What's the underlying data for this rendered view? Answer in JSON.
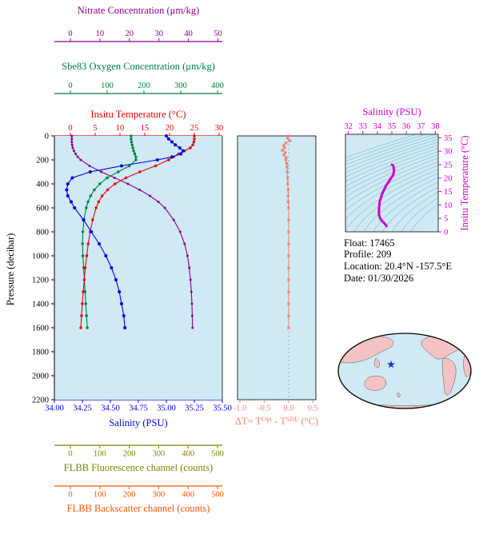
{
  "figure": {
    "bg": "#ffffff",
    "plot_bg": "#cfe9f5"
  },
  "main_plot": {
    "pressure_axis": {
      "label": "Pressure (decibar)",
      "ticks": [
        0,
        200,
        400,
        600,
        800,
        1000,
        1200,
        1400,
        1600,
        1800,
        2000,
        2200
      ],
      "range": [
        0,
        2200
      ]
    },
    "top_axes": [
      {
        "id": "nitrate",
        "title": "Nitrate Concentration (μm/kg)",
        "color": "#8b008b",
        "ticks": [
          "0",
          "10",
          "20",
          "30",
          "40",
          "50"
        ],
        "tick_values": [
          0,
          10,
          20,
          30,
          40,
          50
        ]
      },
      {
        "id": "oxygen",
        "title": "Sbe83 Oxygen Concentration (μm/kg)",
        "color": "#008040",
        "ticks": [
          "0",
          "100",
          "200",
          "300",
          "400"
        ],
        "tick_values": [
          0,
          100,
          200,
          300,
          400
        ]
      },
      {
        "id": "temperature",
        "title": "Insitu Temperature (°C)",
        "color": "#e60000",
        "ticks": [
          "0",
          "5",
          "10",
          "15",
          "20",
          "25",
          "30"
        ],
        "tick_values": [
          0,
          5,
          10,
          15,
          20,
          25,
          30
        ]
      }
    ],
    "bottom_axes": [
      {
        "id": "salinity",
        "title": "Salinity (PSU)",
        "color": "#0000dd",
        "ticks": [
          "34.00",
          "34.25",
          "34.50",
          "34.75",
          "35.00",
          "35.25",
          "35.50"
        ],
        "tick_values": [
          34.0,
          34.25,
          34.5,
          34.75,
          35.0,
          35.25,
          35.5
        ]
      },
      {
        "id": "fluorescence",
        "title": "FLBB Fluorescence channel (counts)",
        "color": "#808000",
        "ticks": [
          "0",
          "100",
          "200",
          "300",
          "400",
          "500"
        ],
        "tick_values": [
          0,
          100,
          200,
          300,
          400,
          500
        ]
      },
      {
        "id": "backscatter",
        "title": "FLBB Backscatter channel (counts)",
        "color": "#ff5500",
        "ticks": [
          "0",
          "100",
          "200",
          "300",
          "400",
          "500"
        ],
        "tick_values": [
          0,
          100,
          200,
          300,
          400,
          500
        ]
      }
    ]
  },
  "delta_plot": {
    "title_parts": [
      "ΔT= T",
      "Opt",
      " - T",
      "SBE",
      " (°C)"
    ],
    "color": "#f4816e",
    "ticks": [
      "-1.0",
      "-0.5",
      "0.0",
      "0.5"
    ],
    "tick_values": [
      -1.0,
      -0.5,
      0.0,
      0.5
    ]
  },
  "ts_plot": {
    "title": "Salinity (PSU)",
    "right_label": "Insitu Temperature (°C)",
    "color": "#cc00cc",
    "contour_color": "#6fb7c4",
    "sal_ticks": [
      "32",
      "33",
      "34",
      "35",
      "36",
      "37",
      "38"
    ],
    "temp_ticks": [
      "0",
      "5",
      "10",
      "15",
      "20",
      "25",
      "30",
      "35"
    ]
  },
  "info": {
    "lines": [
      "Float:  17465",
      "Profile:  209",
      "Location:  20.4°N  -157.5°E",
      "Date:  01/30/2026"
    ]
  },
  "map": {
    "ocean": "#cfe9f5",
    "land": "#f3c3c3",
    "marker_color": "#2233cc"
  },
  "chart_data": [
    {
      "name": "profiles",
      "type": "line",
      "ylabel": "Pressure (decibar)",
      "ylim": [
        0,
        2200
      ],
      "y_inverted": true,
      "pressure": [
        0,
        25,
        50,
        75,
        100,
        125,
        150,
        175,
        200,
        250,
        300,
        350,
        400,
        450,
        500,
        550,
        600,
        700,
        800,
        900,
        1000,
        1100,
        1200,
        1300,
        1400,
        1500,
        1600
      ],
      "series": [
        {
          "name": "Nitrate Concentration",
          "units": "μm/kg",
          "color": "#8b008b",
          "xlim": [
            0,
            50
          ],
          "values": [
            0.5,
            0.5,
            0.5,
            0.6,
            0.8,
            1.2,
            1.8,
            2.5,
            3.5,
            6.5,
            10.5,
            15,
            19.5,
            23.5,
            27,
            29.8,
            32,
            35,
            37.2,
            38.7,
            39.7,
            40.3,
            40.7,
            41,
            41.2,
            41.3,
            41.4
          ]
        },
        {
          "name": "Sbe83 Oxygen Concentration",
          "units": "μm/kg",
          "color": "#008040",
          "xlim": [
            0,
            400
          ],
          "values": [
            165,
            165,
            166,
            168,
            170,
            172,
            175,
            178,
            178,
            160,
            130,
            100,
            80,
            65,
            55,
            48,
            43,
            37,
            34,
            33,
            34,
            36,
            38,
            40,
            42,
            44,
            46
          ]
        },
        {
          "name": "Insitu Temperature",
          "units": "°C",
          "color": "#e60000",
          "xlim": [
            0,
            30
          ],
          "values": [
            25,
            25,
            24.9,
            24.7,
            24.2,
            23,
            21.8,
            20.8,
            19.8,
            17.2,
            14,
            11.2,
            9,
            7.5,
            6.4,
            5.7,
            5.2,
            4.5,
            4,
            3.6,
            3.3,
            3,
            2.8,
            2.6,
            2.4,
            2.25,
            2.1
          ]
        },
        {
          "name": "Salinity",
          "units": "PSU",
          "color": "#0000dd",
          "xlim": [
            34.0,
            35.5
          ],
          "values": [
            35,
            35.02,
            35.05,
            35.08,
            35.12,
            35.15,
            35.13,
            35.05,
            34.92,
            34.6,
            34.32,
            34.16,
            34.12,
            34.11,
            34.12,
            34.15,
            34.18,
            34.26,
            34.33,
            34.4,
            34.46,
            34.51,
            34.55,
            34.58,
            34.6,
            34.62,
            34.63
          ]
        }
      ]
    },
    {
      "name": "temperature_difference",
      "type": "scatter",
      "xlabel": "ΔT= T^Opt - T^SBE (°C)",
      "xlim": [
        -1.05,
        0.56
      ],
      "color": "#f4816e",
      "points": [
        [
          0,
          0
        ],
        [
          -0.02,
          20
        ],
        [
          0.03,
          40
        ],
        [
          -0.06,
          60
        ],
        [
          -0.1,
          80
        ],
        [
          -0.08,
          100
        ],
        [
          -0.13,
          120
        ],
        [
          -0.07,
          140
        ],
        [
          -0.1,
          160
        ],
        [
          -0.05,
          180
        ],
        [
          -0.06,
          200
        ],
        [
          -0.04,
          230
        ],
        [
          -0.03,
          260
        ],
        [
          -0.03,
          300
        ],
        [
          -0.02,
          350
        ],
        [
          -0.02,
          400
        ],
        [
          -0.01,
          450
        ],
        [
          -0.01,
          500
        ],
        [
          -0.01,
          550
        ],
        [
          0,
          600
        ],
        [
          0,
          700
        ],
        [
          0,
          800
        ],
        [
          0,
          900
        ],
        [
          0,
          1000
        ],
        [
          0,
          1100
        ],
        [
          0,
          1200
        ],
        [
          0,
          1300
        ],
        [
          0,
          1400
        ],
        [
          0,
          1500
        ],
        [
          0,
          1600
        ]
      ]
    },
    {
      "name": "ts_diagram",
      "type": "line",
      "xlabel": "Salinity (PSU)",
      "ylabel": "Insitu Temperature (°C)",
      "xlim": [
        31.8,
        38.2
      ],
      "ylim": [
        0,
        36.3
      ],
      "color": "#cc00cc",
      "points": [
        [
          35,
          25
        ],
        [
          35.05,
          24.9
        ],
        [
          35.12,
          24.2
        ],
        [
          35.15,
          23
        ],
        [
          35.13,
          21.8
        ],
        [
          35.05,
          20.8
        ],
        [
          34.92,
          19.8
        ],
        [
          34.6,
          17.2
        ],
        [
          34.32,
          14
        ],
        [
          34.16,
          11.2
        ],
        [
          34.12,
          9
        ],
        [
          34.11,
          7.5
        ],
        [
          34.12,
          6.4
        ],
        [
          34.15,
          5.7
        ],
        [
          34.18,
          5.2
        ],
        [
          34.26,
          4.5
        ],
        [
          34.33,
          4
        ],
        [
          34.4,
          3.6
        ],
        [
          34.46,
          3.3
        ],
        [
          34.51,
          3
        ],
        [
          34.55,
          2.8
        ],
        [
          34.58,
          2.6
        ],
        [
          34.6,
          2.4
        ],
        [
          34.62,
          2.25
        ],
        [
          34.63,
          2.1
        ]
      ]
    }
  ]
}
